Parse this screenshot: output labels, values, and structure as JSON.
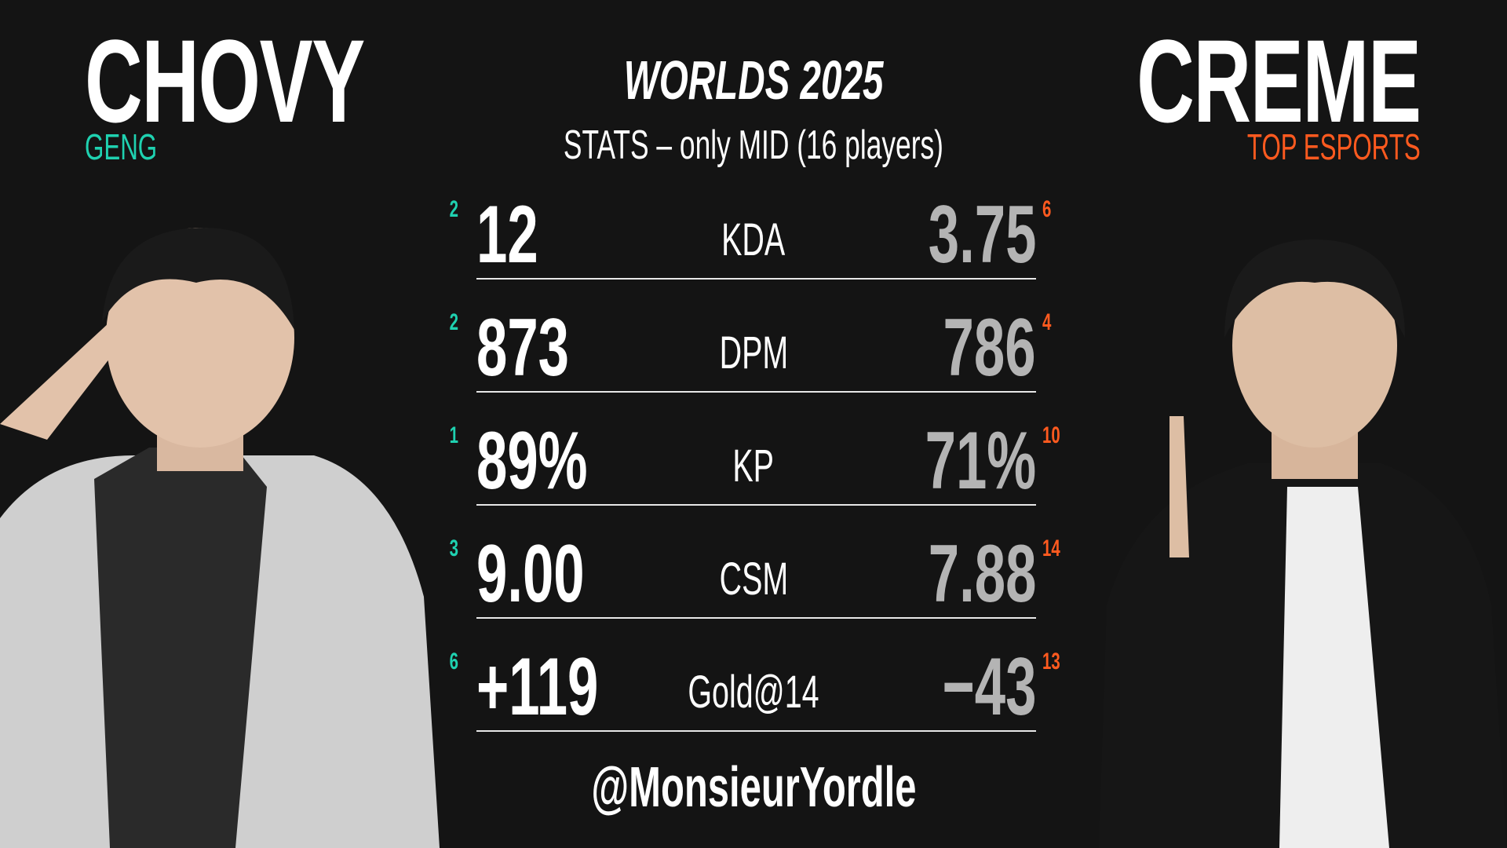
{
  "header": {
    "title": "WORLDS 2025",
    "subtitle": "STATS – only MID (16 players)"
  },
  "left_player": {
    "name": "CHOVY",
    "team": "GENG",
    "team_color": "#1fd1b0"
  },
  "right_player": {
    "name": "CREME",
    "team": "TOP ESPORTS",
    "team_color": "#ff5a1f"
  },
  "stats": [
    {
      "label": "KDA",
      "left_value": "12",
      "left_rank": "2",
      "right_value": "3.75",
      "right_rank": "6"
    },
    {
      "label": "DPM",
      "left_value": "873",
      "left_rank": "2",
      "right_value": "786",
      "right_rank": "4"
    },
    {
      "label": "KP",
      "left_value": "89%",
      "left_rank": "1",
      "right_value": "71%",
      "right_rank": "10"
    },
    {
      "label": "CSM",
      "left_value": "9.00",
      "left_rank": "3",
      "right_value": "7.88",
      "right_rank": "14"
    },
    {
      "label": "Gold@14",
      "left_value": "+119",
      "left_rank": "6",
      "right_value": "−43",
      "right_rank": "13"
    }
  ],
  "footer": {
    "handle": "@MonsieurYordle"
  }
}
